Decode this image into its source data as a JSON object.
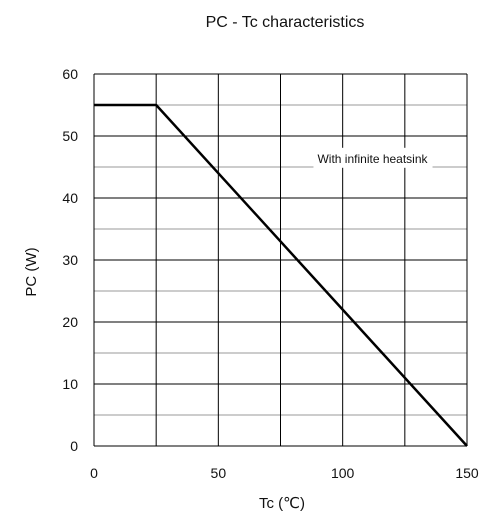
{
  "chart_data": {
    "type": "line",
    "title": "PC - Tc characteristics",
    "xlabel": "Tc  (℃)",
    "ylabel": "PC  (W)",
    "xlim": [
      0,
      150
    ],
    "ylim": [
      0,
      60
    ],
    "x_ticks": [
      "0",
      "50",
      "100",
      "150"
    ],
    "y_ticks": [
      "0",
      "10",
      "20",
      "30",
      "40",
      "50",
      "60"
    ],
    "grid": true,
    "series": [
      {
        "x": [
          0,
          25,
          150
        ],
        "y": [
          55,
          55,
          0
        ],
        "color": "#000000"
      }
    ],
    "annotations": [
      {
        "text": "With infinite heatsink",
        "x": 112,
        "y": 46
      }
    ]
  }
}
